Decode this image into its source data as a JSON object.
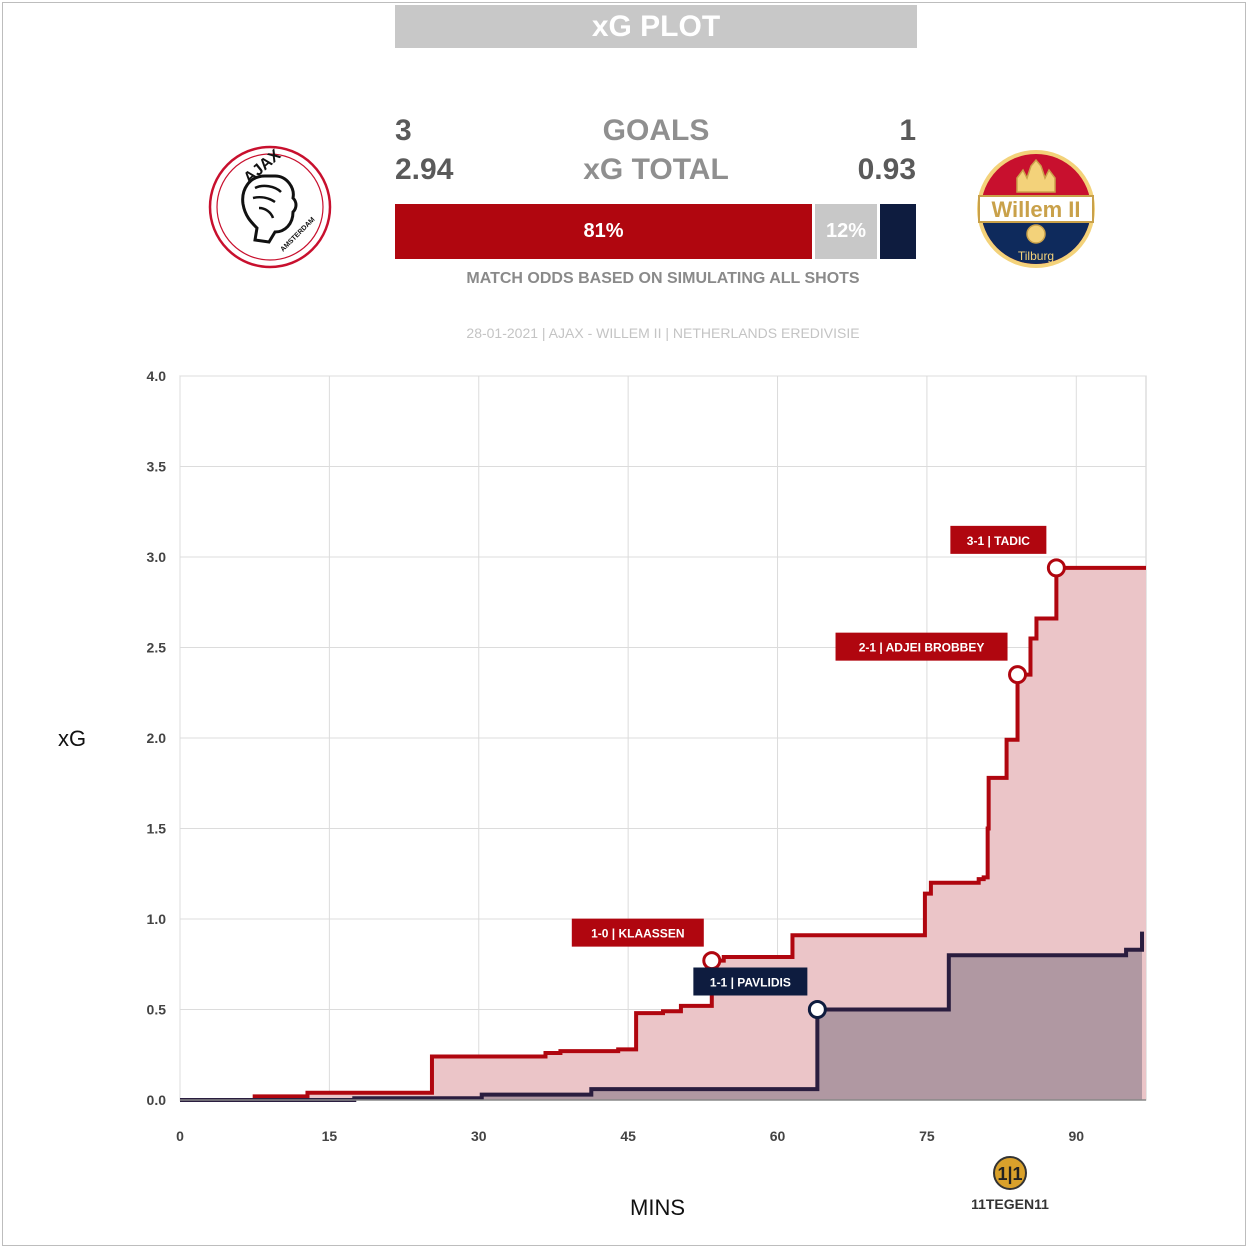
{
  "header": {
    "title": "xG PLOT"
  },
  "home": {
    "goals": "3",
    "xg_total": "2.94",
    "win_pct": 81,
    "win_label": "81%",
    "color": "#b0060f",
    "fill": "#ebc5c8",
    "logo": {
      "icon": "ajax-crest-icon",
      "text": "AJAX",
      "subtext": "AMSTERDAM"
    }
  },
  "away": {
    "goals": "1",
    "xg_total": "0.93",
    "win_pct": 7,
    "color": "#0e1c3f",
    "fill": "#b098a2",
    "logo": {
      "icon": "willem-ii-crest-icon",
      "text": "Willem II",
      "subtext": "Tilburg"
    }
  },
  "draw": {
    "pct": 12,
    "label": "12%",
    "color": "#c8c8c8"
  },
  "labels": {
    "goals": "GOALS",
    "xg_total": "xG TOTAL"
  },
  "odds_caption": "MATCH ODDS BASED ON SIMULATING ALL SHOTS",
  "subtitle": "28-01-2021 | AJAX - WILLEM II | NETHERLANDS EREDIVISIE",
  "brand": {
    "icon": "11tegen11-logo-icon",
    "text": "11TEGEN11"
  },
  "chart_data": {
    "type": "area",
    "xlabel": "MINS",
    "ylabel": "xG",
    "xlim": [
      0,
      97
    ],
    "ylim": [
      0,
      4.0
    ],
    "x_ticks": [
      "0",
      "15",
      "30",
      "45",
      "60",
      "75",
      "90"
    ],
    "y_ticks": [
      "0.0",
      "0.5",
      "1.0",
      "1.5",
      "2.0",
      "2.5",
      "3.0",
      "3.5",
      "4.0"
    ],
    "grid": true,
    "series": [
      {
        "team": "home",
        "points": [
          [
            0,
            0
          ],
          [
            7.5,
            0.02
          ],
          [
            12.8,
            0.04
          ],
          [
            25.3,
            0.24
          ],
          [
            36.7,
            0.26
          ],
          [
            38.2,
            0.27
          ],
          [
            44.0,
            0.28
          ],
          [
            45.8,
            0.48
          ],
          [
            48.5,
            0.49
          ],
          [
            50.3,
            0.52
          ],
          [
            53.4,
            0.77
          ],
          [
            54.6,
            0.79
          ],
          [
            61.5,
            0.91
          ],
          [
            74.8,
            1.14
          ],
          [
            75.4,
            1.2
          ],
          [
            80.2,
            1.22
          ],
          [
            80.7,
            1.23
          ],
          [
            81.1,
            1.5
          ],
          [
            81.2,
            1.78
          ],
          [
            83.0,
            1.99
          ],
          [
            84.1,
            2.35
          ],
          [
            85.4,
            2.55
          ],
          [
            86.0,
            2.66
          ],
          [
            88.0,
            2.94
          ],
          [
            97,
            2.94
          ]
        ]
      },
      {
        "team": "away",
        "points": [
          [
            0,
            0
          ],
          [
            17.5,
            0.01
          ],
          [
            30.3,
            0.03
          ],
          [
            41.3,
            0.06
          ],
          [
            64.0,
            0.5
          ],
          [
            77.2,
            0.8
          ],
          [
            95.0,
            0.83
          ],
          [
            96.6,
            0.93
          ]
        ]
      }
    ],
    "goal_annotations": [
      {
        "team": "home",
        "minute": 53.4,
        "xg": 0.77,
        "label": "1-0 | KLAASSEN"
      },
      {
        "team": "away",
        "minute": 64.0,
        "xg": 0.5,
        "label": "1-1 | PAVLIDIS"
      },
      {
        "team": "home",
        "minute": 84.1,
        "xg": 2.35,
        "label": "2-1 | ADJEI BROBBEY"
      },
      {
        "team": "home",
        "minute": 88.0,
        "xg": 2.94,
        "label": "3-1 | TADIC"
      }
    ]
  }
}
